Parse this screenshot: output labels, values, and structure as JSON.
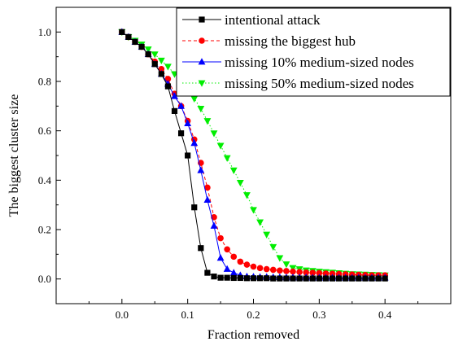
{
  "chart_data": {
    "type": "line",
    "title": "",
    "xlabel": "Fraction removed",
    "ylabel": "The biggest cluster size",
    "xlim": [
      -0.1,
      0.5
    ],
    "ylim": [
      -0.1,
      1.1
    ],
    "x_ticks": [
      "0.0",
      "0.1",
      "0.2",
      "0.3",
      "0.4"
    ],
    "y_ticks": [
      "0.0",
      "0.2",
      "0.4",
      "0.6",
      "0.8",
      "1.0"
    ],
    "grid": false,
    "legend_position": "top-right",
    "x": [
      0.0,
      0.01,
      0.02,
      0.03,
      0.04,
      0.05,
      0.06,
      0.07,
      0.08,
      0.09,
      0.1,
      0.11,
      0.12,
      0.13,
      0.14,
      0.15,
      0.16,
      0.17,
      0.18,
      0.19,
      0.2,
      0.21,
      0.22,
      0.23,
      0.24,
      0.25,
      0.26,
      0.27,
      0.28,
      0.29,
      0.3,
      0.31,
      0.32,
      0.33,
      0.34,
      0.35,
      0.36,
      0.37,
      0.38,
      0.39,
      0.4
    ],
    "series": [
      {
        "name": "intentional attack",
        "color": "#000000",
        "marker": "square",
        "line_style": "solid",
        "values": [
          1.0,
          0.98,
          0.96,
          0.94,
          0.91,
          0.87,
          0.83,
          0.78,
          0.68,
          0.59,
          0.5,
          0.29,
          0.125,
          0.025,
          0.01,
          0.005,
          0.005,
          0.004,
          0.004,
          0.003,
          0.003,
          0.003,
          0.003,
          0.002,
          0.002,
          0.002,
          0.002,
          0.002,
          0.002,
          0.002,
          0.002,
          0.002,
          0.002,
          0.002,
          0.002,
          0.002,
          0.002,
          0.002,
          0.002,
          0.002,
          0.002
        ]
      },
      {
        "name": "missing the biggest hub",
        "color": "#ff0000",
        "marker": "circle",
        "line_style": "dashed",
        "values": [
          1.0,
          0.98,
          0.96,
          0.94,
          0.91,
          0.88,
          0.85,
          0.81,
          0.75,
          0.7,
          0.64,
          0.565,
          0.47,
          0.37,
          0.25,
          0.165,
          0.12,
          0.09,
          0.07,
          0.058,
          0.05,
          0.044,
          0.04,
          0.037,
          0.034,
          0.032,
          0.03,
          0.028,
          0.026,
          0.025,
          0.024,
          0.022,
          0.021,
          0.02,
          0.019,
          0.018,
          0.017,
          0.016,
          0.015,
          0.015,
          0.015
        ]
      },
      {
        "name": "missing 10% medium-sized nodes",
        "color": "#0000ff",
        "marker": "triangle-up",
        "line_style": "solid",
        "values": [
          1.0,
          0.98,
          0.96,
          0.94,
          0.91,
          0.87,
          0.83,
          0.79,
          0.74,
          0.7,
          0.63,
          0.55,
          0.44,
          0.32,
          0.215,
          0.085,
          0.04,
          0.025,
          0.015,
          0.01,
          0.009,
          0.008,
          0.008,
          0.007,
          0.007,
          0.006,
          0.006,
          0.006,
          0.006,
          0.005,
          0.005,
          0.005,
          0.005,
          0.005,
          0.005,
          0.005,
          0.005,
          0.005,
          0.005,
          0.005,
          0.005
        ]
      },
      {
        "name": "missing 50% medium-sized nodes",
        "color": "#00ee00",
        "marker": "triangle-down",
        "line_style": "dotted",
        "values": [
          1.0,
          0.98,
          0.965,
          0.95,
          0.93,
          0.91,
          0.885,
          0.86,
          0.83,
          0.8,
          0.77,
          0.73,
          0.69,
          0.64,
          0.59,
          0.54,
          0.49,
          0.44,
          0.39,
          0.34,
          0.28,
          0.23,
          0.18,
          0.13,
          0.085,
          0.06,
          0.045,
          0.04,
          0.035,
          0.033,
          0.03,
          0.028,
          0.026,
          0.024,
          0.022,
          0.02,
          0.019,
          0.018,
          0.017,
          0.016,
          0.015
        ]
      }
    ]
  }
}
